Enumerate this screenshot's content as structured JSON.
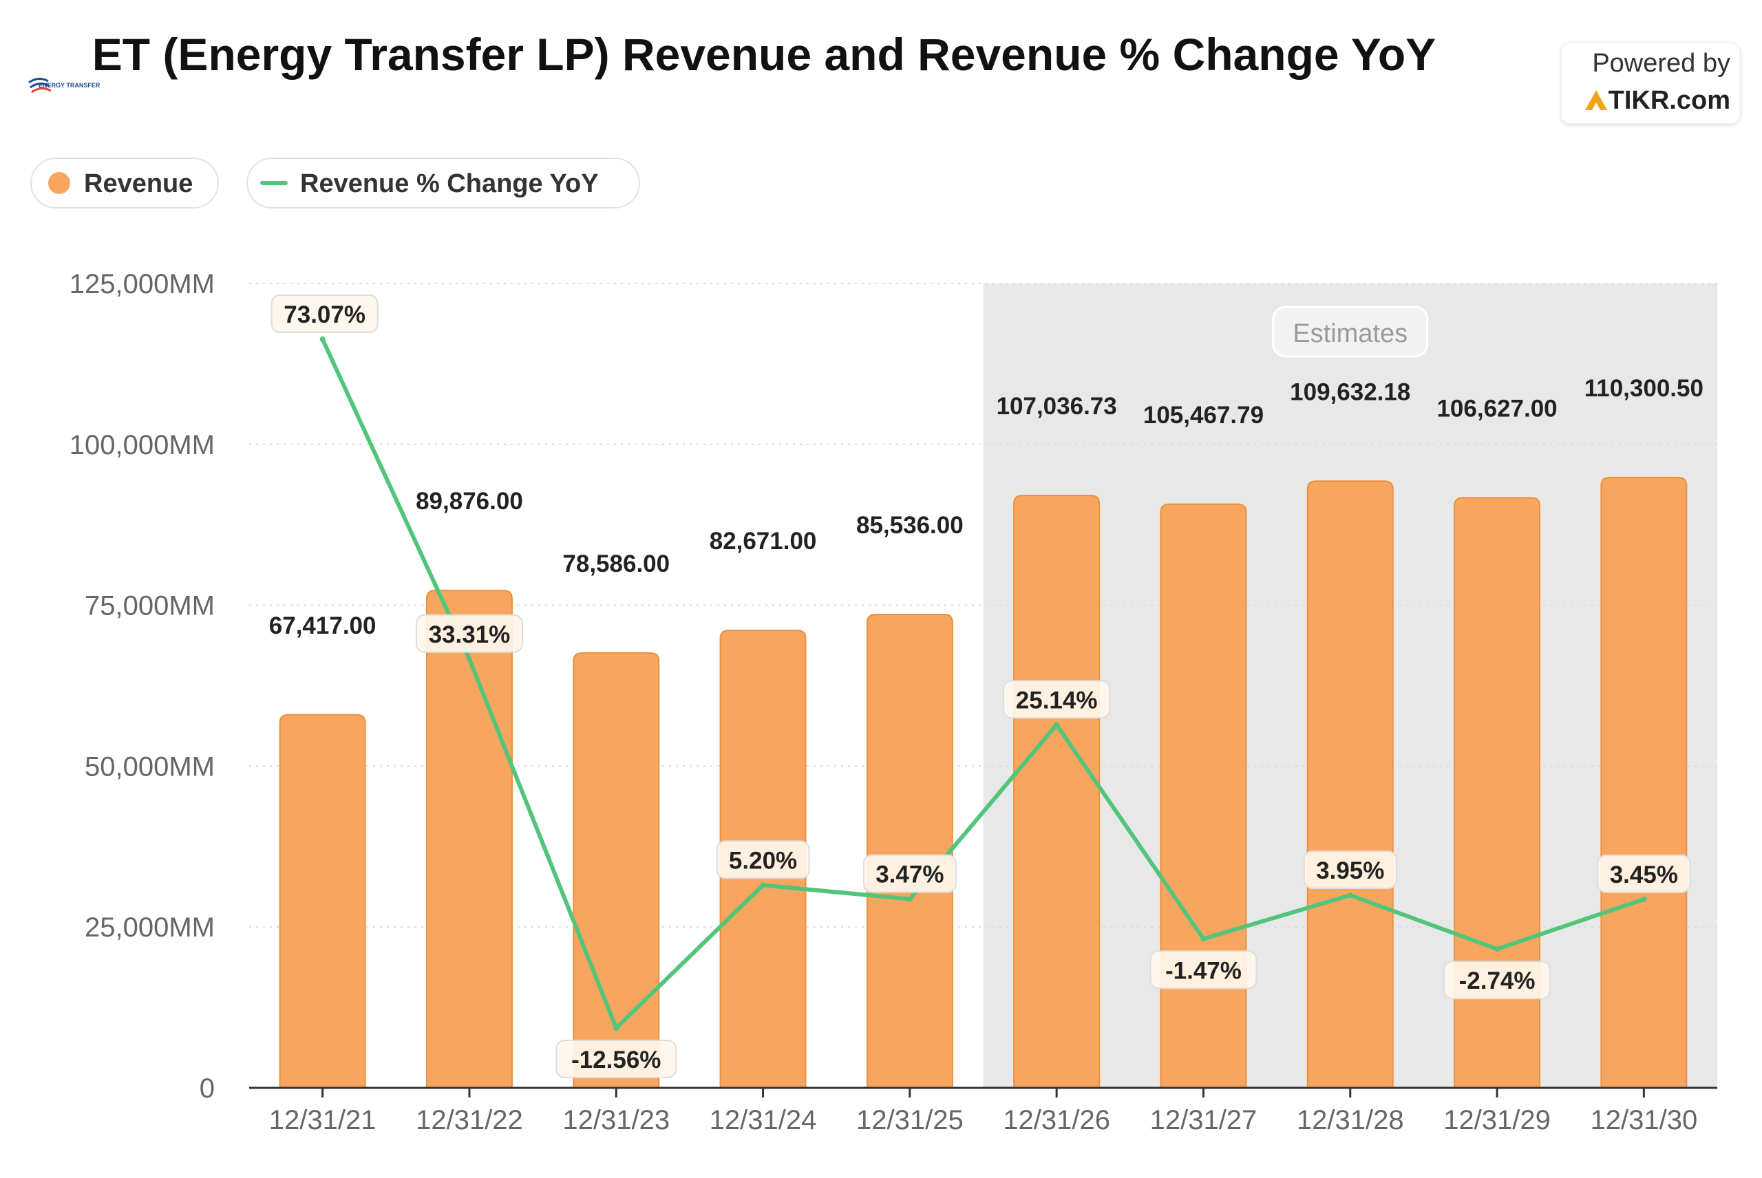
{
  "chart_data": {
    "type": "bar",
    "title": "ET (Energy Transfer LP) Revenue and Revenue % Change YoY",
    "brand": {
      "powered_by": "Powered by",
      "name": "TIKR.com",
      "logo_text": "ENERGY TRANSFER"
    },
    "legend": {
      "placement": "top-left",
      "items": [
        {
          "label": "Revenue",
          "marker": "dot"
        },
        {
          "label": "Revenue % Change YoY",
          "marker": "line"
        }
      ]
    },
    "categories": [
      "12/31/21",
      "12/31/22",
      "12/31/23",
      "12/31/24",
      "12/31/25",
      "12/31/26",
      "12/31/27",
      "12/31/28",
      "12/31/29",
      "12/31/30"
    ],
    "series": [
      {
        "name": "Revenue",
        "kind": "bar",
        "axis": "left",
        "values": [
          67417.0,
          89876.0,
          78586.0,
          82671.0,
          85536.0,
          107036.73,
          105467.79,
          109632.18,
          106627.0,
          110300.5
        ],
        "labels": [
          "67,417.00",
          "89,876.00",
          "78,586.00",
          "82,671.00",
          "85,536.00",
          "107,036.73",
          "105,467.79",
          "109,632.18",
          "106,627.00",
          "110,300.50"
        ]
      },
      {
        "name": "Revenue % Change YoY",
        "kind": "line",
        "axis": "right-hidden",
        "values": [
          73.07,
          33.31,
          -12.56,
          5.2,
          3.47,
          25.14,
          -1.47,
          3.95,
          -2.74,
          3.45
        ],
        "labels": [
          "73.07%",
          "33.31%",
          "-12.56%",
          "5.20%",
          "3.47%",
          "25.14%",
          "-1.47%",
          "3.95%",
          "-2.74%",
          "3.45%"
        ]
      }
    ],
    "y_axis": {
      "min": 0,
      "max": 125000,
      "ticks": [
        0,
        25000,
        50000,
        75000,
        100000,
        125000
      ],
      "tick_labels": [
        "0",
        "25,000MM",
        "50,000MM",
        "75,000MM",
        "100,000MM",
        "125,000MM"
      ],
      "grid": true
    },
    "pct_axis": {
      "min": -20,
      "max": 80
    },
    "estimates": {
      "label": "Estimates",
      "start_category": "12/31/26",
      "end_category": "12/31/30"
    },
    "colors": {
      "bar": "#f8a65f",
      "bar_stroke": "#e9913f",
      "line": "#52c57a",
      "text": "#222222",
      "axis_text": "#666666",
      "estimate_bg": "#e8e8e8"
    }
  }
}
